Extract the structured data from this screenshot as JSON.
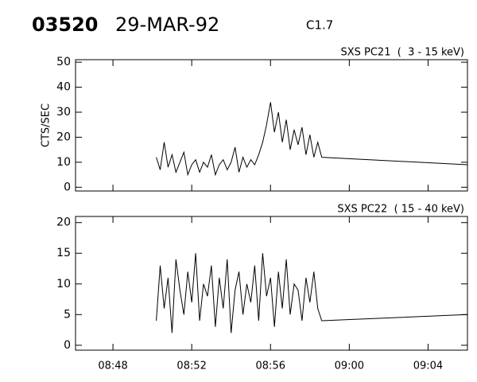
{
  "header": {
    "id": "03520",
    "date": "29-MAR-92",
    "class": "C1.7"
  },
  "chart_data": [
    {
      "type": "line",
      "title": "SXS PC21  (  3 - 15 keV)",
      "ylabel": "CTS/SEC",
      "color": "#000000",
      "x": [
        530.2,
        530.4,
        530.6,
        530.8,
        531.0,
        531.2,
        531.4,
        531.6,
        531.8,
        532.0,
        532.2,
        532.4,
        532.6,
        532.8,
        533.0,
        533.2,
        533.4,
        533.6,
        533.8,
        534.0,
        534.2,
        534.4,
        534.6,
        534.8,
        535.0,
        535.2,
        535.4,
        535.6,
        535.8,
        536.0,
        536.2,
        536.4,
        536.6,
        536.8,
        537.0,
        537.2,
        537.4,
        537.6,
        537.8,
        538.0,
        538.2,
        538.4,
        538.6,
        546
      ],
      "values": [
        12,
        7,
        18,
        8,
        13,
        6,
        10,
        14,
        5,
        9,
        11,
        6,
        10,
        8,
        13,
        5,
        9,
        11,
        7,
        10,
        16,
        6,
        12,
        8,
        11,
        9,
        13,
        18,
        25,
        34,
        22,
        30,
        18,
        27,
        15,
        23,
        17,
        24,
        13,
        21,
        12,
        18,
        12,
        9
      ],
      "xlim": [
        526.1,
        546
      ],
      "ylim": [
        -1.5,
        51
      ],
      "yticks": [
        0,
        10,
        20,
        30,
        40,
        50
      ]
    },
    {
      "type": "line",
      "title": "SXS PC22  ( 15 - 40 keV)",
      "color": "#000000",
      "x": [
        530.2,
        530.4,
        530.6,
        530.8,
        531.0,
        531.2,
        531.4,
        531.6,
        531.8,
        532.0,
        532.2,
        532.4,
        532.6,
        532.8,
        533.0,
        533.2,
        533.4,
        533.6,
        533.8,
        534.0,
        534.2,
        534.4,
        534.6,
        534.8,
        535.0,
        535.2,
        535.4,
        535.6,
        535.8,
        536.0,
        536.2,
        536.4,
        536.6,
        536.8,
        537.0,
        537.2,
        537.4,
        537.6,
        537.8,
        538.0,
        538.2,
        538.4,
        538.6,
        546
      ],
      "values": [
        4,
        13,
        6,
        11,
        2,
        14,
        9,
        5,
        12,
        7,
        15,
        4,
        10,
        8,
        13,
        3,
        11,
        6,
        14,
        2,
        9,
        12,
        5,
        10,
        7,
        13,
        4,
        15,
        8,
        11,
        3,
        12,
        6,
        14,
        5,
        10,
        9,
        4,
        11,
        7,
        12,
        6,
        4,
        5
      ],
      "xlim": [
        526.1,
        546
      ],
      "ylim": [
        -0.8,
        21
      ],
      "yticks": [
        0,
        5,
        10,
        15,
        20
      ],
      "xticks": [
        {
          "value": 528,
          "label": "08:48"
        },
        {
          "value": 532,
          "label": "08:52"
        },
        {
          "value": 536,
          "label": "08:56"
        },
        {
          "value": 540,
          "label": "09:00"
        },
        {
          "value": 544,
          "label": "09:04"
        }
      ]
    }
  ]
}
